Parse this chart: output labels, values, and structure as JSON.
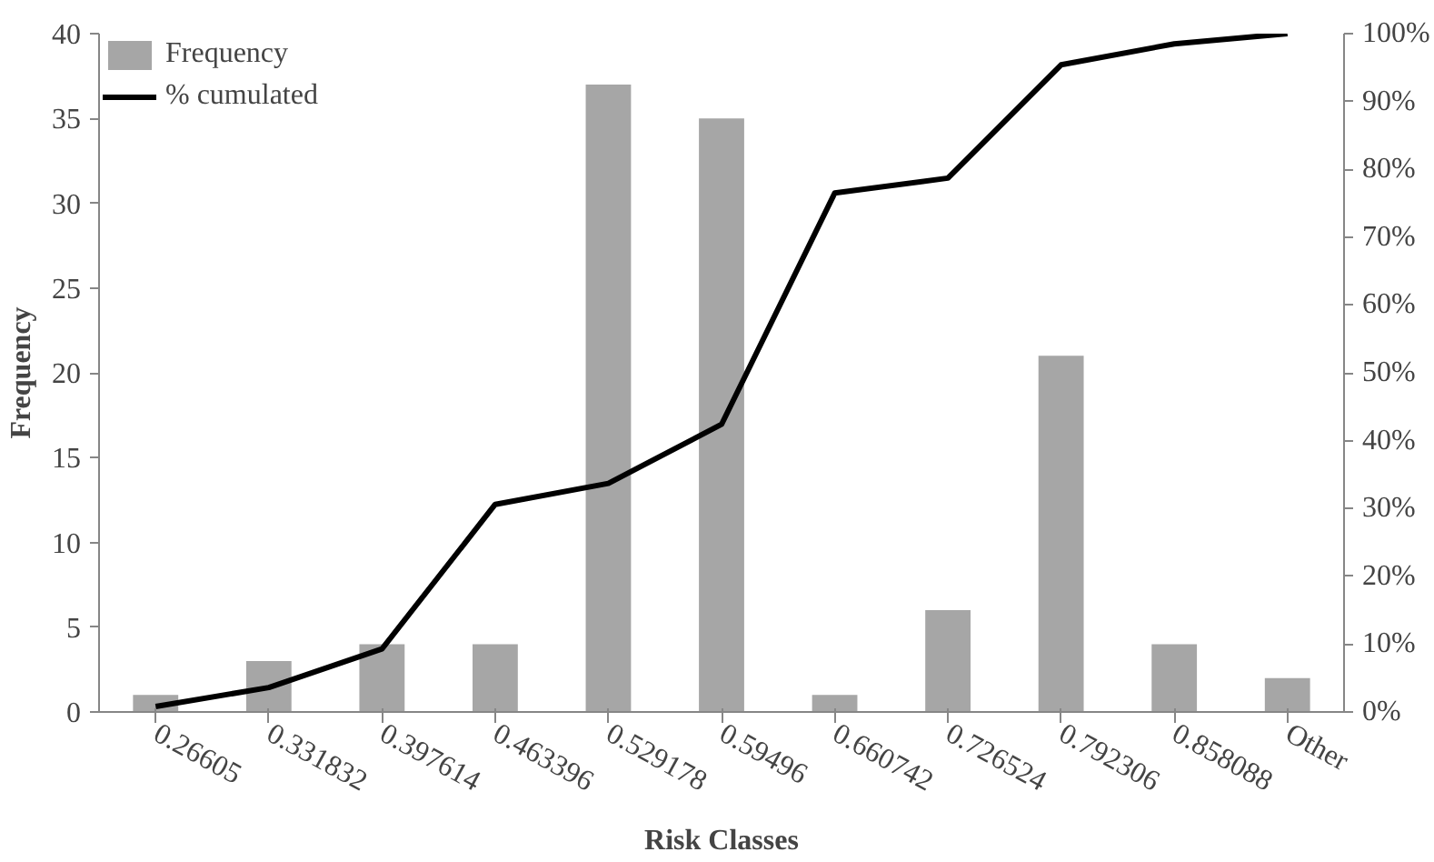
{
  "chart_data": {
    "type": "bar",
    "xlabel": "Risk Classes",
    "ylabel": "Frequency",
    "categories": [
      "0.26605",
      "0.331832",
      "0.397614",
      "0.463396",
      "0.529178",
      "0.59496",
      "0.660742",
      "0.726524",
      "0.792306",
      "0.858088",
      "Other"
    ],
    "series": [
      {
        "name": "Frequency",
        "color": "#a6a6a6",
        "values": [
          1,
          3,
          4,
          4,
          37,
          35,
          1,
          6,
          21,
          4,
          2
        ]
      },
      {
        "name": "% cumulated",
        "type": "line",
        "axis": "y2",
        "color": "#000000",
        "values": [
          0.8,
          3.6,
          9.3,
          30.6,
          33.7,
          42.4,
          76.5,
          78.7,
          95.4,
          98.5,
          100
        ]
      }
    ],
    "ylim": [
      0,
      40
    ],
    "yticks": [
      0,
      5,
      10,
      15,
      20,
      25,
      30,
      35,
      40
    ],
    "y2lim": [
      0,
      100
    ],
    "y2ticks": [
      {
        "value": 0,
        "label": "0%"
      },
      {
        "value": 10,
        "label": "10%"
      },
      {
        "value": 20,
        "label": "20%"
      },
      {
        "value": 30,
        "label": "30%"
      },
      {
        "value": 40,
        "label": "40%"
      },
      {
        "value": 50,
        "label": "50%"
      },
      {
        "value": 60,
        "label": "60%"
      },
      {
        "value": 70,
        "label": "70%"
      },
      {
        "value": 80,
        "label": "80%"
      },
      {
        "value": 90,
        "label": "90%"
      },
      {
        "value": 100,
        "label": "100%"
      }
    ],
    "grid": false,
    "legend": "top left",
    "marker": "none",
    "line_style": "solid"
  }
}
